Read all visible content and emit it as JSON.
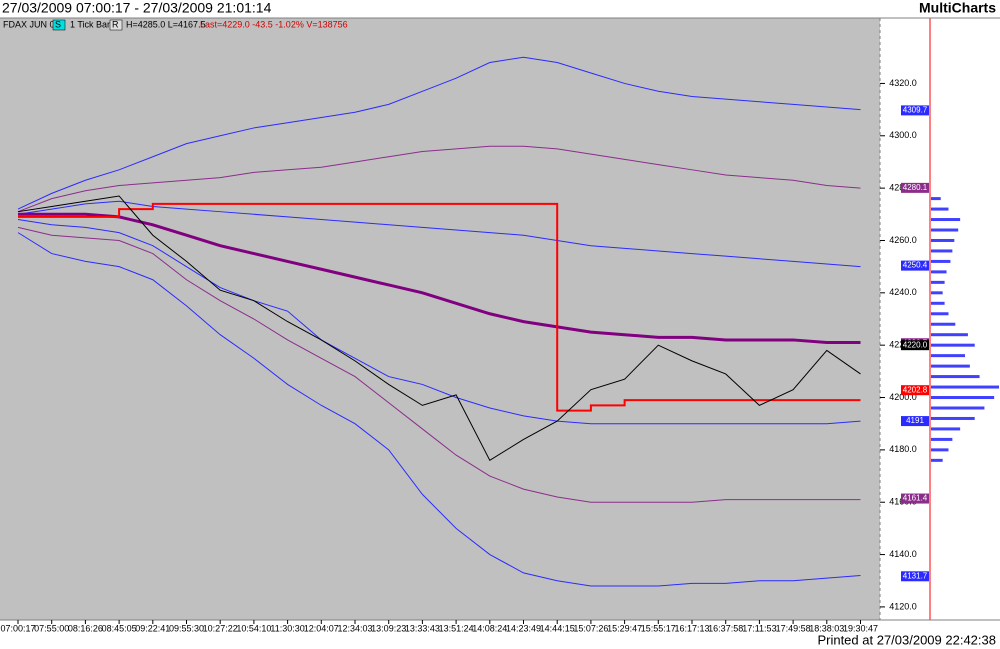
{
  "header": {
    "range": "27/03/2009 07:00:17 - 27/03/2009 21:01:14",
    "app": "MultiCharts"
  },
  "info": {
    "symbol": "FDAX JUN 09",
    "s_button": "S",
    "interval": "1 Tick Bar",
    "r_button": "R",
    "hilo": "H=4285.0 L=4167.5",
    "last": "Last=4229.0 -43.5 -1.02% V=138756"
  },
  "footer": "Printed at 27/03/2009 22:42:38",
  "chart_data": {
    "type": "line",
    "categories": [
      "07:00:17",
      "07:55:00",
      "08:16:26",
      "08:45:05",
      "09:22:41",
      "09:55:30",
      "10:27:22",
      "10:54:10",
      "11:30:30",
      "12:04:07",
      "12:34:03",
      "13:09:23",
      "13:33:43",
      "13:51:24",
      "14:08:24",
      "14:23:49",
      "14:44:15",
      "15:07:26",
      "15:29:47",
      "15:55:17",
      "16:17:13",
      "16:37:58",
      "17:11:53",
      "17:49:58",
      "18:38:03",
      "19:30:47"
    ],
    "ylim": [
      4115,
      4345
    ],
    "yticks": [
      {
        "value": 4120,
        "label": "4120.0"
      },
      {
        "value": 4140,
        "label": "4140.0"
      },
      {
        "value": 4160,
        "label": "4160.0"
      },
      {
        "value": 4180,
        "label": "4180.0"
      },
      {
        "value": 4200,
        "label": "4200.0"
      },
      {
        "value": 4220,
        "label": "4220.0"
      },
      {
        "value": 4240,
        "label": "4240.0"
      },
      {
        "value": 4260,
        "label": "4260.0"
      },
      {
        "value": 4280,
        "label": "4280.0"
      },
      {
        "value": 4300,
        "label": "4300.0"
      },
      {
        "value": 4320,
        "label": "4320.0"
      }
    ],
    "series": [
      {
        "color": "#2b2bff",
        "width": 1,
        "last": 4309.7,
        "values": [
          4272,
          4278,
          4283,
          4287,
          4292,
          4297,
          4300,
          4303,
          4305,
          4307,
          4309,
          4312,
          4317,
          4322,
          4328,
          4330,
          4328,
          4324,
          4320,
          4317,
          4315,
          4314,
          4313,
          4312,
          4311,
          4310
        ]
      },
      {
        "color": "#8b2d8b",
        "width": 1,
        "last": 4280.1,
        "values": [
          4271,
          4276,
          4279,
          4281,
          4282,
          4283,
          4284,
          4286,
          4287,
          4288,
          4290,
          4292,
          4294,
          4295,
          4296,
          4296,
          4295,
          4293,
          4291,
          4289,
          4287,
          4285,
          4284,
          4283,
          4281,
          4280
        ]
      },
      {
        "color": "#2b2bff",
        "width": 1,
        "last": 4250.4,
        "values": [
          4270,
          4272,
          4274,
          4275,
          4273,
          4272,
          4271,
          4270,
          4269,
          4268,
          4267,
          4266,
          4265,
          4264,
          4263,
          4262,
          4260,
          4258,
          4257,
          4256,
          4255,
          4254,
          4253,
          4252,
          4251,
          4250
        ]
      },
      {
        "color": "#800080",
        "width": 3,
        "last": 4220.7,
        "values": [
          4270,
          4270,
          4270,
          4269,
          4266,
          4262,
          4258,
          4255,
          4252,
          4249,
          4246,
          4243,
          4240,
          4236,
          4232,
          4229,
          4227,
          4225,
          4224,
          4223,
          4223,
          4222,
          4222,
          4222,
          4221,
          4221
        ]
      },
      {
        "color": "#2b2bff",
        "width": 1,
        "last": 4191.0,
        "values": [
          4268,
          4266,
          4265,
          4263,
          4258,
          4250,
          4242,
          4237,
          4233,
          4222,
          4215,
          4208,
          4205,
          4200,
          4196,
          4193,
          4191,
          4190,
          4190,
          4190,
          4190,
          4190,
          4190,
          4190,
          4190,
          4191
        ]
      },
      {
        "color": "#8b2d8b",
        "width": 1,
        "last": 4161.4,
        "values": [
          4265,
          4262,
          4261,
          4260,
          4255,
          4245,
          4237,
          4230,
          4222,
          4215,
          4208,
          4198,
          4188,
          4178,
          4170,
          4165,
          4162,
          4160,
          4160,
          4160,
          4160,
          4161,
          4161,
          4161,
          4161,
          4161
        ]
      },
      {
        "color": "#2b2bff",
        "width": 1,
        "last": 4131.7,
        "values": [
          4263,
          4255,
          4252,
          4250,
          4245,
          4235,
          4224,
          4215,
          4205,
          4197,
          4190,
          4180,
          4163,
          4150,
          4140,
          4133,
          4130,
          4128,
          4128,
          4128,
          4129,
          4129,
          4130,
          4130,
          4131,
          4132
        ]
      },
      {
        "color": "#ff0000",
        "width": 2,
        "step": true,
        "last": 4202.8,
        "values": [
          4269,
          4269,
          4269,
          4272,
          4274,
          4274,
          4274,
          4274,
          4274,
          4274,
          4274,
          4274,
          4274,
          4274,
          4274,
          4274,
          4195,
          4197,
          4199,
          4199,
          4199,
          4199,
          4199,
          4199,
          4199,
          4199
        ]
      },
      {
        "color": "#000000",
        "width": 1,
        "last": {
          "value": 4220,
          "label": "4220.0"
        },
        "values": [
          4271,
          4273,
          4275,
          4277,
          4262,
          4252,
          4241,
          4237,
          4229,
          4222,
          4214,
          4205,
          4197,
          4201,
          4176,
          4184,
          4191,
          4203,
          4207,
          4220,
          4214,
          4209,
          4197,
          4203,
          4218,
          4209
        ]
      }
    ],
    "volume_profile": {
      "color": "#4040ff",
      "prices": [
        4176,
        4180,
        4184,
        4188,
        4192,
        4196,
        4200,
        4204,
        4208,
        4212,
        4216,
        4220,
        4224,
        4228,
        4232,
        4236,
        4240,
        4244,
        4248,
        4252,
        4256,
        4260,
        4264,
        4268,
        4272,
        4276
      ],
      "values": [
        12,
        18,
        22,
        30,
        45,
        55,
        65,
        70,
        50,
        40,
        35,
        45,
        38,
        25,
        18,
        14,
        12,
        14,
        16,
        20,
        22,
        24,
        28,
        30,
        18,
        10
      ]
    }
  }
}
